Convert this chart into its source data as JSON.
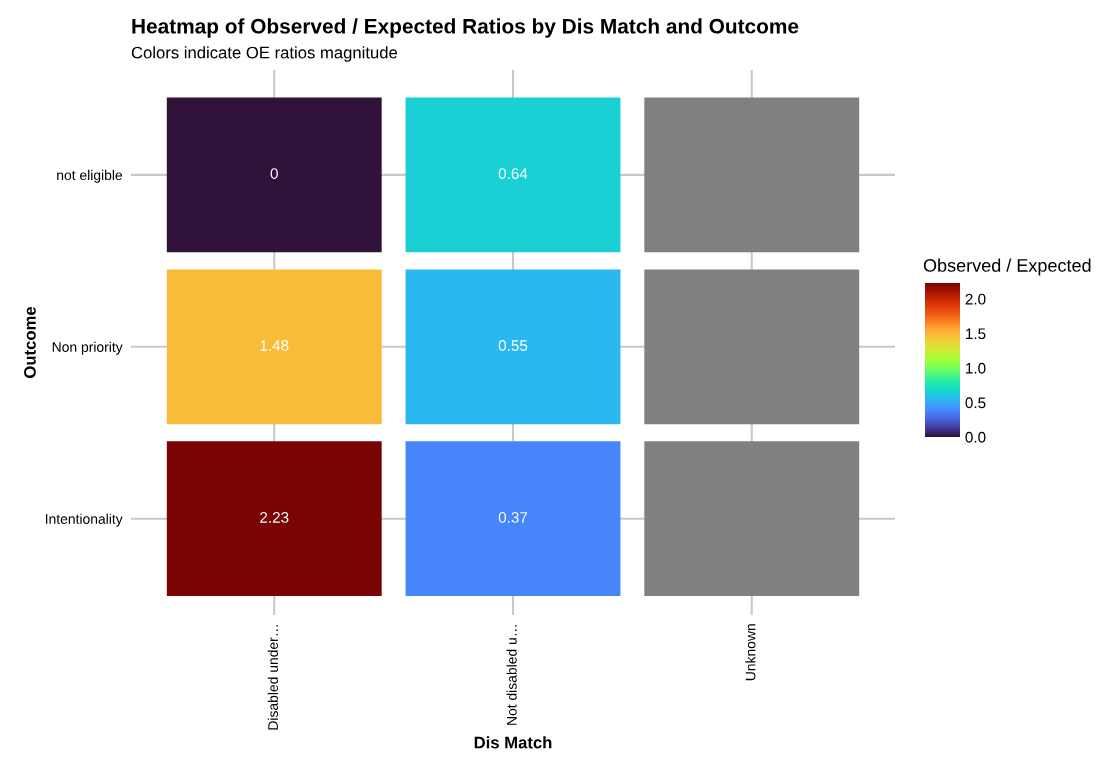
{
  "chart_data": {
    "type": "heatmap",
    "title": "Heatmap of Observed / Expected Ratios by Dis Match and Outcome",
    "subtitle": "Colors indicate OE ratios magnitude",
    "xlabel": "Dis Match",
    "ylabel": "Outcome",
    "clabel": "Observed / Expected",
    "categories": [
      "Disabled under…",
      "Not disabled u…",
      "Unknown"
    ],
    "y_categories": [
      "not eligible",
      "Non priority",
      "Intentionality"
    ],
    "cells": [
      [
        0,
        0.64,
        null
      ],
      [
        1.48,
        0.55,
        null
      ],
      [
        2.23,
        0.37,
        null
      ]
    ],
    "clim": [
      0,
      2.23
    ],
    "cticks": [
      {
        "value": 0,
        "label": "0.0"
      },
      {
        "value": 0.5,
        "label": "0.5"
      },
      {
        "value": 1,
        "label": "1.0"
      },
      {
        "value": 1.5,
        "label": "1.5"
      },
      {
        "value": 2,
        "label": "2.0"
      }
    ],
    "data_labels": true,
    "grid": true
  }
}
